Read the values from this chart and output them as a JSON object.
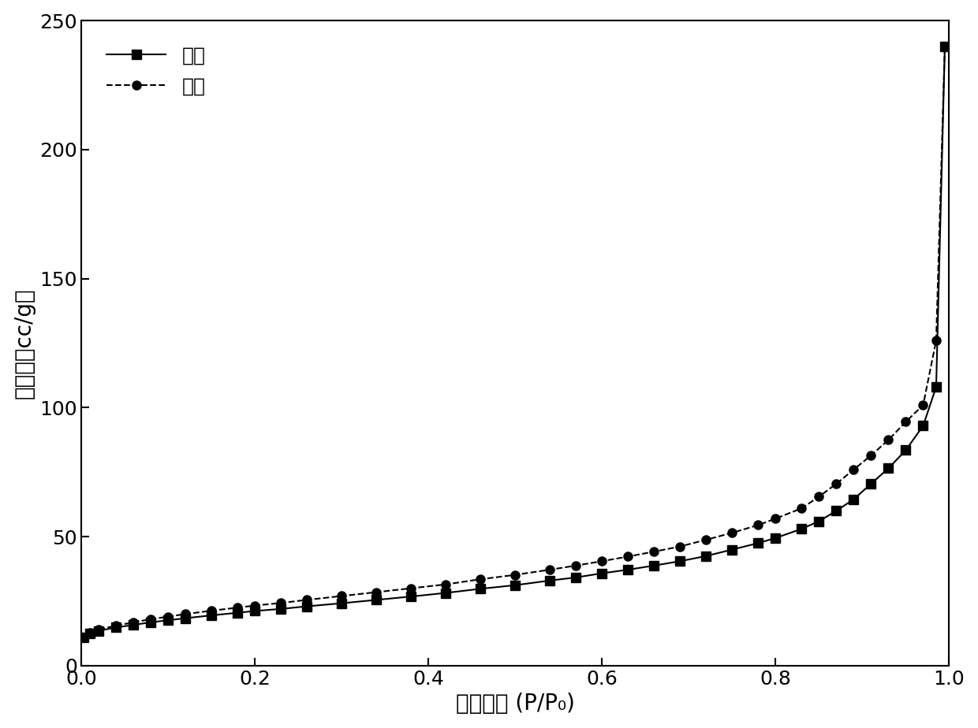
{
  "adsorption_x": [
    0.003,
    0.01,
    0.02,
    0.04,
    0.06,
    0.08,
    0.1,
    0.12,
    0.15,
    0.18,
    0.2,
    0.23,
    0.26,
    0.3,
    0.34,
    0.38,
    0.42,
    0.46,
    0.5,
    0.54,
    0.57,
    0.6,
    0.63,
    0.66,
    0.69,
    0.72,
    0.75,
    0.78,
    0.8,
    0.83,
    0.85,
    0.87,
    0.89,
    0.91,
    0.93,
    0.95,
    0.97,
    0.985,
    0.995
  ],
  "adsorption_y": [
    11.0,
    12.5,
    13.5,
    14.8,
    15.8,
    16.8,
    17.6,
    18.4,
    19.5,
    20.5,
    21.2,
    22.0,
    23.0,
    24.2,
    25.5,
    26.8,
    28.2,
    29.8,
    31.2,
    33.0,
    34.2,
    35.8,
    37.2,
    38.8,
    40.5,
    42.5,
    45.0,
    47.5,
    49.5,
    53.0,
    56.0,
    60.0,
    64.5,
    70.5,
    76.5,
    83.5,
    93.0,
    108.0,
    240.0
  ],
  "desorption_x": [
    0.003,
    0.01,
    0.02,
    0.04,
    0.06,
    0.08,
    0.1,
    0.12,
    0.15,
    0.18,
    0.2,
    0.23,
    0.26,
    0.3,
    0.34,
    0.38,
    0.42,
    0.46,
    0.5,
    0.54,
    0.57,
    0.6,
    0.63,
    0.66,
    0.69,
    0.72,
    0.75,
    0.78,
    0.8,
    0.83,
    0.85,
    0.87,
    0.89,
    0.91,
    0.93,
    0.95,
    0.97,
    0.985,
    0.995
  ],
  "desorption_y": [
    11.0,
    12.8,
    14.0,
    15.5,
    16.8,
    18.0,
    19.0,
    20.0,
    21.3,
    22.5,
    23.3,
    24.3,
    25.5,
    27.0,
    28.5,
    30.0,
    31.5,
    33.5,
    35.2,
    37.2,
    38.8,
    40.5,
    42.3,
    44.2,
    46.2,
    48.8,
    51.5,
    54.5,
    57.0,
    61.0,
    65.5,
    70.5,
    76.0,
    81.5,
    87.5,
    94.5,
    101.0,
    126.0,
    240.0
  ],
  "xlabel": "相对压力 (P/P₀)",
  "ylabel": "吸附量（cc/g）",
  "legend_adsorption": "吸附",
  "legend_desorption": "脱附",
  "xlim": [
    0.0,
    1.0
  ],
  "ylim": [
    0,
    250
  ],
  "yticks": [
    0,
    50,
    100,
    150,
    200,
    250
  ],
  "xticks": [
    0.0,
    0.2,
    0.4,
    0.6,
    0.8,
    1.0
  ],
  "line_color": "#000000",
  "marker_square": "s",
  "marker_circle": "o",
  "marker_size": 8,
  "line_width": 1.5,
  "font_size_label": 20,
  "font_size_tick": 18,
  "font_size_legend": 18,
  "background_color": "#ffffff"
}
